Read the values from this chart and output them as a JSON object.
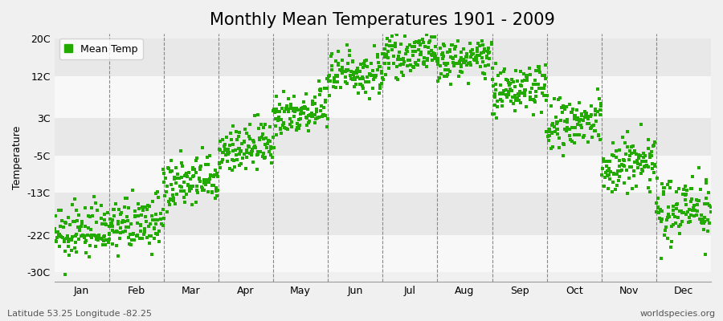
{
  "title": "Monthly Mean Temperatures 1901 - 2009",
  "ylabel": "Temperature",
  "yticks": [
    -30,
    -22,
    -13,
    -5,
    3,
    12,
    20
  ],
  "ytick_labels": [
    "-30C",
    "-22C",
    "-13C",
    "-5C",
    "3C",
    "12C",
    "20C"
  ],
  "ylim": [
    -32,
    21
  ],
  "months": [
    "Jan",
    "Feb",
    "Mar",
    "Apr",
    "May",
    "Jun",
    "Jul",
    "Aug",
    "Sep",
    "Oct",
    "Nov",
    "Dec"
  ],
  "xlim": [
    0,
    12
  ],
  "dot_color": "#22aa00",
  "bg_color": "#f0f0f0",
  "band_color_light": "#f8f8f8",
  "band_color_dark": "#e8e8e8",
  "legend_label": "Mean Temp",
  "bottom_left": "Latitude 53.25 Longitude -82.25",
  "bottom_right": "worldspecies.org",
  "title_fontsize": 15,
  "axis_fontsize": 9,
  "legend_fontsize": 9,
  "monthly_means": [
    -22.5,
    -20.5,
    -12.0,
    -4.5,
    3.5,
    12.0,
    16.0,
    15.0,
    8.5,
    0.5,
    -8.0,
    -17.5
  ],
  "monthly_stds": [
    2.8,
    2.8,
    2.8,
    2.5,
    2.5,
    2.5,
    2.0,
    2.0,
    2.5,
    3.0,
    3.2,
    3.5
  ],
  "monthly_trend": [
    0.02,
    0.015,
    0.02,
    0.02,
    0.018,
    0.015,
    0.01,
    0.01,
    0.015,
    0.02,
    0.02,
    0.025
  ],
  "year_start": 1901,
  "year_end": 2009
}
